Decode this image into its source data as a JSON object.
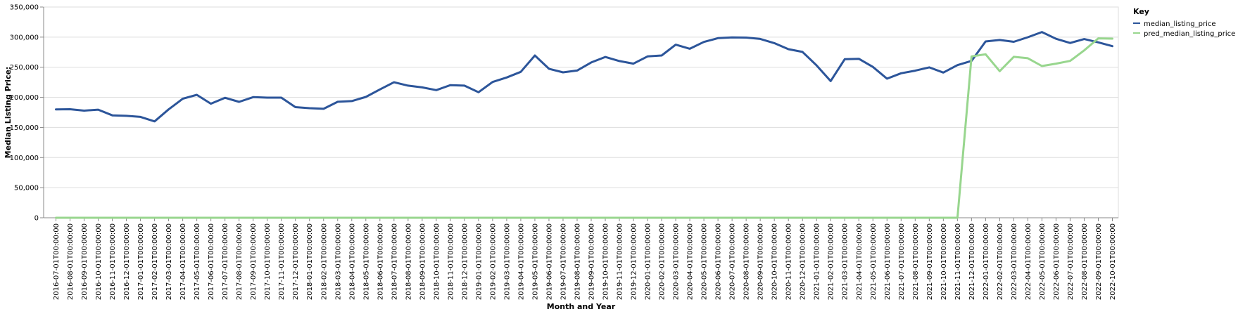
{
  "chart_data": {
    "type": "line",
    "xlabel": "Month and Year",
    "ylabel": "Median Listing Price:",
    "ylim": [
      0,
      350000
    ],
    "yticks": [
      0,
      50000,
      100000,
      150000,
      200000,
      250000,
      300000,
      350000
    ],
    "ytick_labels": [
      "0",
      "50,000",
      "100,000",
      "150,000",
      "200,000",
      "250,000",
      "300,000",
      "350,000"
    ],
    "grid": true,
    "legend": {
      "title": "Key",
      "placement": "right"
    },
    "x": [
      "2016-07-01T00:00:00",
      "2016-08-01T00:00:00",
      "2016-09-01T00:00:00",
      "2016-10-01T00:00:00",
      "2016-11-01T00:00:00",
      "2016-12-01T00:00:00",
      "2017-01-01T00:00:00",
      "2017-02-01T00:00:00",
      "2017-03-01T00:00:00",
      "2017-04-01T00:00:00",
      "2017-05-01T00:00:00",
      "2017-06-01T00:00:00",
      "2017-07-01T00:00:00",
      "2017-08-01T00:00:00",
      "2017-09-01T00:00:00",
      "2017-10-01T00:00:00",
      "2017-11-01T00:00:00",
      "2017-12-01T00:00:00",
      "2018-01-01T00:00:00",
      "2018-02-01T00:00:00",
      "2018-03-01T00:00:00",
      "2018-04-01T00:00:00",
      "2018-05-01T00:00:00",
      "2018-06-01T00:00:00",
      "2018-07-01T00:00:00",
      "2018-08-01T00:00:00",
      "2018-09-01T00:00:00",
      "2018-10-01T00:00:00",
      "2018-11-01T00:00:00",
      "2018-12-01T00:00:00",
      "2019-01-01T00:00:00",
      "2019-02-01T00:00:00",
      "2019-03-01T00:00:00",
      "2019-04-01T00:00:00",
      "2019-05-01T00:00:00",
      "2019-06-01T00:00:00",
      "2019-07-01T00:00:00",
      "2019-08-01T00:00:00",
      "2019-09-01T00:00:00",
      "2019-10-01T00:00:00",
      "2019-11-01T00:00:00",
      "2019-12-01T00:00:00",
      "2020-01-01T00:00:00",
      "2020-02-01T00:00:00",
      "2020-03-01T00:00:00",
      "2020-04-01T00:00:00",
      "2020-05-01T00:00:00",
      "2020-06-01T00:00:00",
      "2020-07-01T00:00:00",
      "2020-08-01T00:00:00",
      "2020-09-01T00:00:00",
      "2020-10-01T00:00:00",
      "2020-11-01T00:00:00",
      "2020-12-01T00:00:00",
      "2021-01-01T00:00:00",
      "2021-02-01T00:00:00",
      "2021-03-01T00:00:00",
      "2021-04-01T00:00:00",
      "2021-05-01T00:00:00",
      "2021-06-01T00:00:00",
      "2021-07-01T00:00:00",
      "2021-08-01T00:00:00",
      "2021-09-01T00:00:00",
      "2021-10-01T00:00:00",
      "2021-11-01T00:00:00",
      "2021-12-01T00:00:00",
      "2022-01-01T00:00:00",
      "2022-02-01T00:00:00",
      "2022-03-01T00:00:00",
      "2022-04-01T00:00:00",
      "2022-05-01T00:00:00",
      "2022-06-01T00:00:00",
      "2022-07-01T00:00:00",
      "2022-08-01T00:00:00",
      "2022-09-01T00:00:00",
      "2022-10-01T00:00:00"
    ],
    "series": [
      {
        "name": "median_listing_price",
        "color": "#2c559a",
        "values": [
          180000,
          180300,
          177900,
          179600,
          170100,
          169300,
          167500,
          160100,
          180000,
          197600,
          204200,
          189500,
          199300,
          192500,
          200300,
          199500,
          199500,
          183800,
          182000,
          181000,
          192600,
          193800,
          200700,
          213200,
          225000,
          219500,
          216500,
          212000,
          220300,
          219500,
          208500,
          225500,
          233000,
          242300,
          269500,
          247500,
          241500,
          244500,
          258000,
          267000,
          260300,
          256000,
          268000,
          269500,
          287500,
          280700,
          292000,
          298300,
          299500,
          299300,
          297000,
          290000,
          280000,
          275500,
          253000,
          227000,
          263300,
          264000,
          250500,
          231000,
          240000,
          244300,
          249800,
          241100,
          253500,
          260500,
          292800,
          295300,
          292300,
          299800,
          308500,
          297300,
          290300,
          296800,
          291300,
          285000
        ]
      },
      {
        "name": "pred_median_listing_price",
        "color": "#98d68e",
        "values": [
          0,
          0,
          0,
          0,
          0,
          0,
          0,
          0,
          0,
          0,
          0,
          0,
          0,
          0,
          0,
          0,
          0,
          0,
          0,
          0,
          0,
          0,
          0,
          0,
          0,
          0,
          0,
          0,
          0,
          0,
          0,
          0,
          0,
          0,
          0,
          0,
          0,
          0,
          0,
          0,
          0,
          0,
          0,
          0,
          0,
          0,
          0,
          0,
          0,
          0,
          0,
          0,
          0,
          0,
          0,
          0,
          0,
          0,
          0,
          0,
          0,
          0,
          0,
          0,
          0,
          268000,
          271500,
          243500,
          267300,
          265000,
          252000,
          256000,
          260500,
          278000,
          298000,
          297500
        ]
      }
    ]
  }
}
